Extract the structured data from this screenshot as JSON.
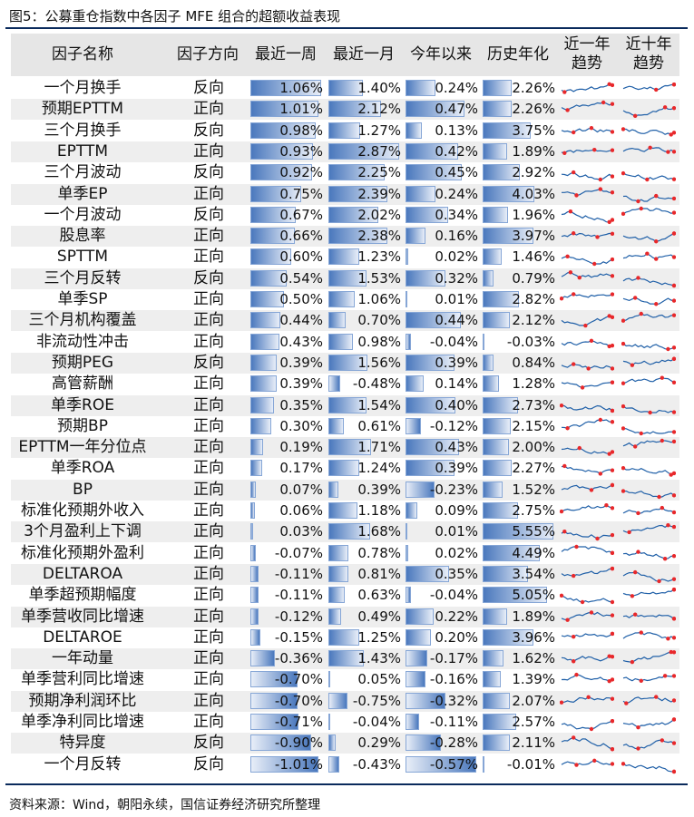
{
  "title": "图5：公募重仓指数中各因子 MFE 组合的超额收益表现",
  "source": "资料来源：Wind，朝阳永续，国信证券经济研究所整理",
  "colors": {
    "bar": "#4a78bd",
    "spark": "#2060a8",
    "marker": "#e8282b",
    "header_bg": "#e6e6e6",
    "shade": "#eeeeee",
    "rule": "#0a2a5c"
  },
  "headers": [
    "因子名称",
    "因子方向",
    "最近一周",
    "最近一月",
    "今年以来",
    "历史年化",
    "近一年\n趋势",
    "近十年\n趋势"
  ],
  "chart_data": {
    "type": "table",
    "columns": [
      "因子名称",
      "因子方向",
      "最近一周",
      "最近一月",
      "今年以来",
      "历史年化",
      "近一年趋势",
      "近十年趋势"
    ],
    "bar_columns": [
      "最近一周",
      "最近一月",
      "今年以来",
      "历史年化"
    ],
    "rows": [
      {
        "name": "一个月换手",
        "dir": "反向",
        "values": [
          1.06,
          1.4,
          0.24,
          2.26
        ]
      },
      {
        "name": "预期EPTTM",
        "dir": "正向",
        "values": [
          1.01,
          2.12,
          0.47,
          2.26
        ]
      },
      {
        "name": "三个月换手",
        "dir": "反向",
        "values": [
          0.98,
          1.27,
          0.13,
          3.75
        ]
      },
      {
        "name": "EPTTM",
        "dir": "正向",
        "values": [
          0.93,
          2.87,
          0.42,
          1.89
        ]
      },
      {
        "name": "三个月波动",
        "dir": "反向",
        "values": [
          0.92,
          2.25,
          0.45,
          2.92
        ]
      },
      {
        "name": "单季EP",
        "dir": "正向",
        "values": [
          0.75,
          2.39,
          0.24,
          4.03
        ]
      },
      {
        "name": "一个月波动",
        "dir": "反向",
        "values": [
          0.67,
          2.02,
          0.34,
          1.96
        ]
      },
      {
        "name": "股息率",
        "dir": "正向",
        "values": [
          0.66,
          2.38,
          0.16,
          3.97
        ]
      },
      {
        "name": "SPTTM",
        "dir": "正向",
        "values": [
          0.6,
          1.23,
          0.02,
          1.46
        ]
      },
      {
        "name": "三个月反转",
        "dir": "反向",
        "values": [
          0.54,
          1.53,
          0.32,
          0.79
        ]
      },
      {
        "name": "单季SP",
        "dir": "正向",
        "values": [
          0.5,
          1.06,
          0.01,
          2.82
        ]
      },
      {
        "name": "三个月机构覆盖",
        "dir": "正向",
        "values": [
          0.44,
          0.7,
          0.44,
          2.12
        ]
      },
      {
        "name": "非流动性冲击",
        "dir": "正向",
        "values": [
          0.43,
          0.98,
          -0.04,
          -0.03
        ]
      },
      {
        "name": "预期PEG",
        "dir": "反向",
        "values": [
          0.39,
          1.56,
          0.39,
          0.84
        ]
      },
      {
        "name": "高管薪酬",
        "dir": "正向",
        "values": [
          0.39,
          -0.48,
          0.14,
          1.28
        ]
      },
      {
        "name": "单季ROE",
        "dir": "正向",
        "values": [
          0.35,
          1.54,
          0.4,
          2.73
        ]
      },
      {
        "name": "预期BP",
        "dir": "正向",
        "values": [
          0.3,
          0.61,
          -0.12,
          2.15
        ]
      },
      {
        "name": "EPTTM一年分位点",
        "dir": "正向",
        "values": [
          0.19,
          1.71,
          0.43,
          2.0
        ]
      },
      {
        "name": "单季ROA",
        "dir": "正向",
        "values": [
          0.17,
          1.24,
          0.39,
          2.27
        ]
      },
      {
        "name": "BP",
        "dir": "正向",
        "values": [
          0.07,
          0.39,
          -0.23,
          1.52
        ]
      },
      {
        "name": "标准化预期外收入",
        "dir": "正向",
        "values": [
          0.06,
          1.18,
          0.09,
          2.75
        ]
      },
      {
        "name": "3个月盈利上下调",
        "dir": "正向",
        "values": [
          0.03,
          1.68,
          0.01,
          5.55
        ]
      },
      {
        "name": "标准化预期外盈利",
        "dir": "正向",
        "values": [
          -0.07,
          0.78,
          0.02,
          4.49
        ]
      },
      {
        "name": "DELTAROA",
        "dir": "正向",
        "values": [
          -0.11,
          0.81,
          0.35,
          3.54
        ]
      },
      {
        "name": "单季超预期幅度",
        "dir": "正向",
        "values": [
          -0.11,
          0.63,
          -0.04,
          5.05
        ]
      },
      {
        "name": "单季营收同比增速",
        "dir": "正向",
        "values": [
          -0.12,
          0.49,
          0.22,
          1.89
        ]
      },
      {
        "name": "DELTAROE",
        "dir": "正向",
        "values": [
          -0.15,
          1.25,
          0.2,
          3.96
        ]
      },
      {
        "name": "一年动量",
        "dir": "正向",
        "values": [
          -0.36,
          1.43,
          -0.17,
          1.62
        ]
      },
      {
        "name": "单季营利同比增速",
        "dir": "正向",
        "values": [
          -0.7,
          0.05,
          -0.16,
          1.39
        ]
      },
      {
        "name": "预期净利润环比",
        "dir": "正向",
        "values": [
          -0.7,
          -0.75,
          -0.32,
          2.07
        ]
      },
      {
        "name": "单季净利同比增速",
        "dir": "正向",
        "values": [
          -0.71,
          -0.04,
          -0.11,
          2.57
        ]
      },
      {
        "name": "特异度",
        "dir": "反向",
        "values": [
          -0.9,
          0.29,
          -0.28,
          2.11
        ]
      },
      {
        "name": "一个月反转",
        "dir": "反向",
        "values": [
          -1.01,
          -0.43,
          -0.57,
          -0.01
        ]
      }
    ]
  }
}
